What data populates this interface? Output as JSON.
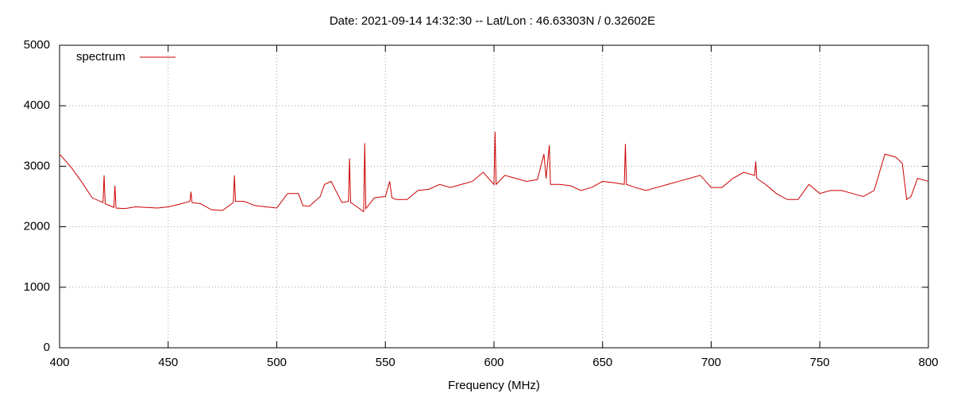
{
  "chart_data": {
    "type": "line",
    "title": "Date: 2021-09-14 14:32:30  --  Lat/Lon : 46.63303N / 0.32602E",
    "x_label": "Frequency (MHz)",
    "x": [
      400,
      405,
      410,
      415,
      420,
      420.5,
      421,
      425,
      425.5,
      426,
      430,
      435,
      440,
      445,
      450,
      455,
      460,
      460.5,
      461,
      465,
      470,
      475,
      480,
      480.5,
      481,
      485,
      490,
      495,
      500,
      505,
      510,
      512,
      515,
      520,
      522,
      525,
      530,
      533,
      533.5,
      534,
      535,
      540,
      540.5,
      541,
      545,
      550,
      552,
      553,
      555,
      560,
      565,
      570,
      575,
      580,
      585,
      590,
      595,
      600,
      600.5,
      601,
      605,
      610,
      615,
      620,
      623,
      624,
      625.5,
      626,
      630,
      635,
      640,
      645,
      650,
      655,
      660,
      660.5,
      661,
      665,
      670,
      675,
      680,
      685,
      690,
      695,
      700,
      705,
      710,
      715,
      720,
      720.5,
      721,
      725,
      730,
      735,
      740,
      745,
      750,
      755,
      760,
      765,
      770,
      775,
      780,
      785,
      788,
      790,
      792,
      795,
      800
    ],
    "series": [
      {
        "name": "spectrum",
        "color": "#cc0000",
        "values": [
          3200,
          3000,
          2750,
          2480,
          2400,
          2850,
          2380,
          2320,
          2680,
          2310,
          2300,
          2330,
          2320,
          2310,
          2330,
          2370,
          2420,
          2580,
          2400,
          2380,
          2280,
          2270,
          2400,
          2850,
          2420,
          2420,
          2350,
          2330,
          2310,
          2550,
          2550,
          2350,
          2340,
          2500,
          2700,
          2750,
          2400,
          2420,
          3130,
          2400,
          2380,
          2250,
          3380,
          2300,
          2480,
          2500,
          2750,
          2480,
          2450,
          2450,
          2600,
          2620,
          2700,
          2650,
          2700,
          2750,
          2900,
          2700,
          3570,
          2700,
          2850,
          2800,
          2750,
          2780,
          3200,
          2800,
          3350,
          2700,
          2700,
          2680,
          2600,
          2650,
          2750,
          2730,
          2700,
          3370,
          2700,
          2650,
          2600,
          2650,
          2700,
          2750,
          2800,
          2850,
          2650,
          2650,
          2800,
          2900,
          2850,
          3080,
          2800,
          2700,
          2550,
          2450,
          2450,
          2700,
          2550,
          2600,
          2600,
          2550,
          2500,
          2600,
          3200,
          3150,
          3050,
          2450,
          2500,
          2800,
          2750
        ]
      }
    ],
    "xlim": [
      400,
      800
    ],
    "xticks": [
      400,
      450,
      500,
      550,
      600,
      650,
      700,
      750,
      800
    ],
    "ylim": [
      0,
      5000
    ],
    "yticks": [
      0,
      1000,
      2000,
      3000,
      4000,
      5000
    ],
    "grid": true,
    "legend": "top-left"
  }
}
